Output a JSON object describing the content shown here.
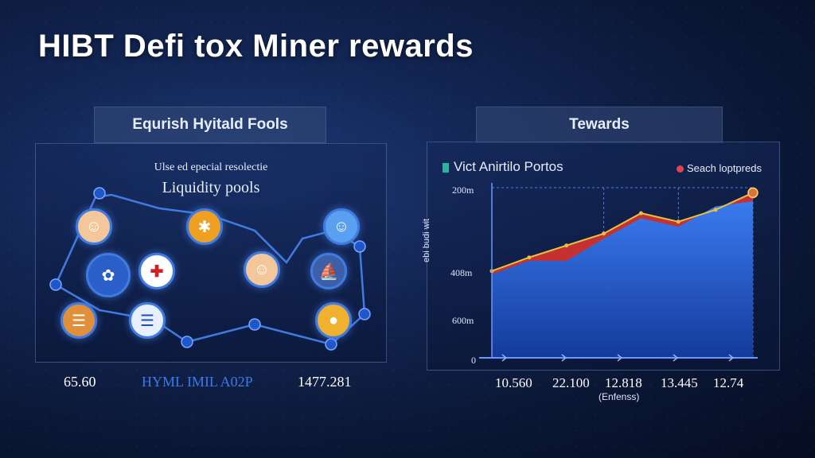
{
  "title": "HIBT Defi tox Miner rewards",
  "left": {
    "header": "Equrish Hyitald Fools",
    "subtitle1": "Ulse ed epecial resolectie",
    "subtitle2": "Liquidity pools",
    "icons": [
      "avatar-red-hat-icon",
      "flame-icon",
      "avatar-blue-icon",
      "brain-icon",
      "red-cross-icon",
      "avatar-chef-icon",
      "ship-icon",
      "basket-icon",
      "greek-flag-icon",
      "coin-icon"
    ],
    "bottom_values": [
      "65.60",
      "HYML IMIL A02P",
      "1477.281"
    ],
    "bottom_colors": [
      "#ffffff",
      "#3a7be8",
      "#ffffff"
    ]
  },
  "right": {
    "header": "Tewards"
  },
  "chart_data": {
    "type": "area",
    "title": "",
    "legend": [
      {
        "name": "Vict Anirtilo Portos",
        "color": "#2bb3a0"
      },
      {
        "name": "Seach loptpreds",
        "color": "#e0444e"
      }
    ],
    "legend_placement": "top",
    "ylabel": "ebi budi wit",
    "xlabel": "(Enfenss)",
    "ytick_labels": [
      "200m",
      "408m",
      "600m",
      "0"
    ],
    "xtick_labels": [
      "10.560",
      "22.100",
      "12.818",
      "13.445",
      "12.74"
    ],
    "x": [
      0,
      1,
      2,
      3,
      4,
      5,
      6,
      7
    ],
    "series": [
      {
        "name": "Vict Anirtilo Portos",
        "values": [
          0.49,
          0.57,
          0.57,
          0.7,
          0.82,
          0.77,
          0.89,
          0.92
        ],
        "color": "#2f6fe0"
      },
      {
        "name": "Seach loptpreds",
        "values": [
          0.51,
          0.59,
          0.66,
          0.73,
          0.85,
          0.8,
          0.87,
          0.97
        ],
        "color": "#d9332f"
      }
    ],
    "ylim": [
      0,
      1
    ],
    "grid": true
  }
}
